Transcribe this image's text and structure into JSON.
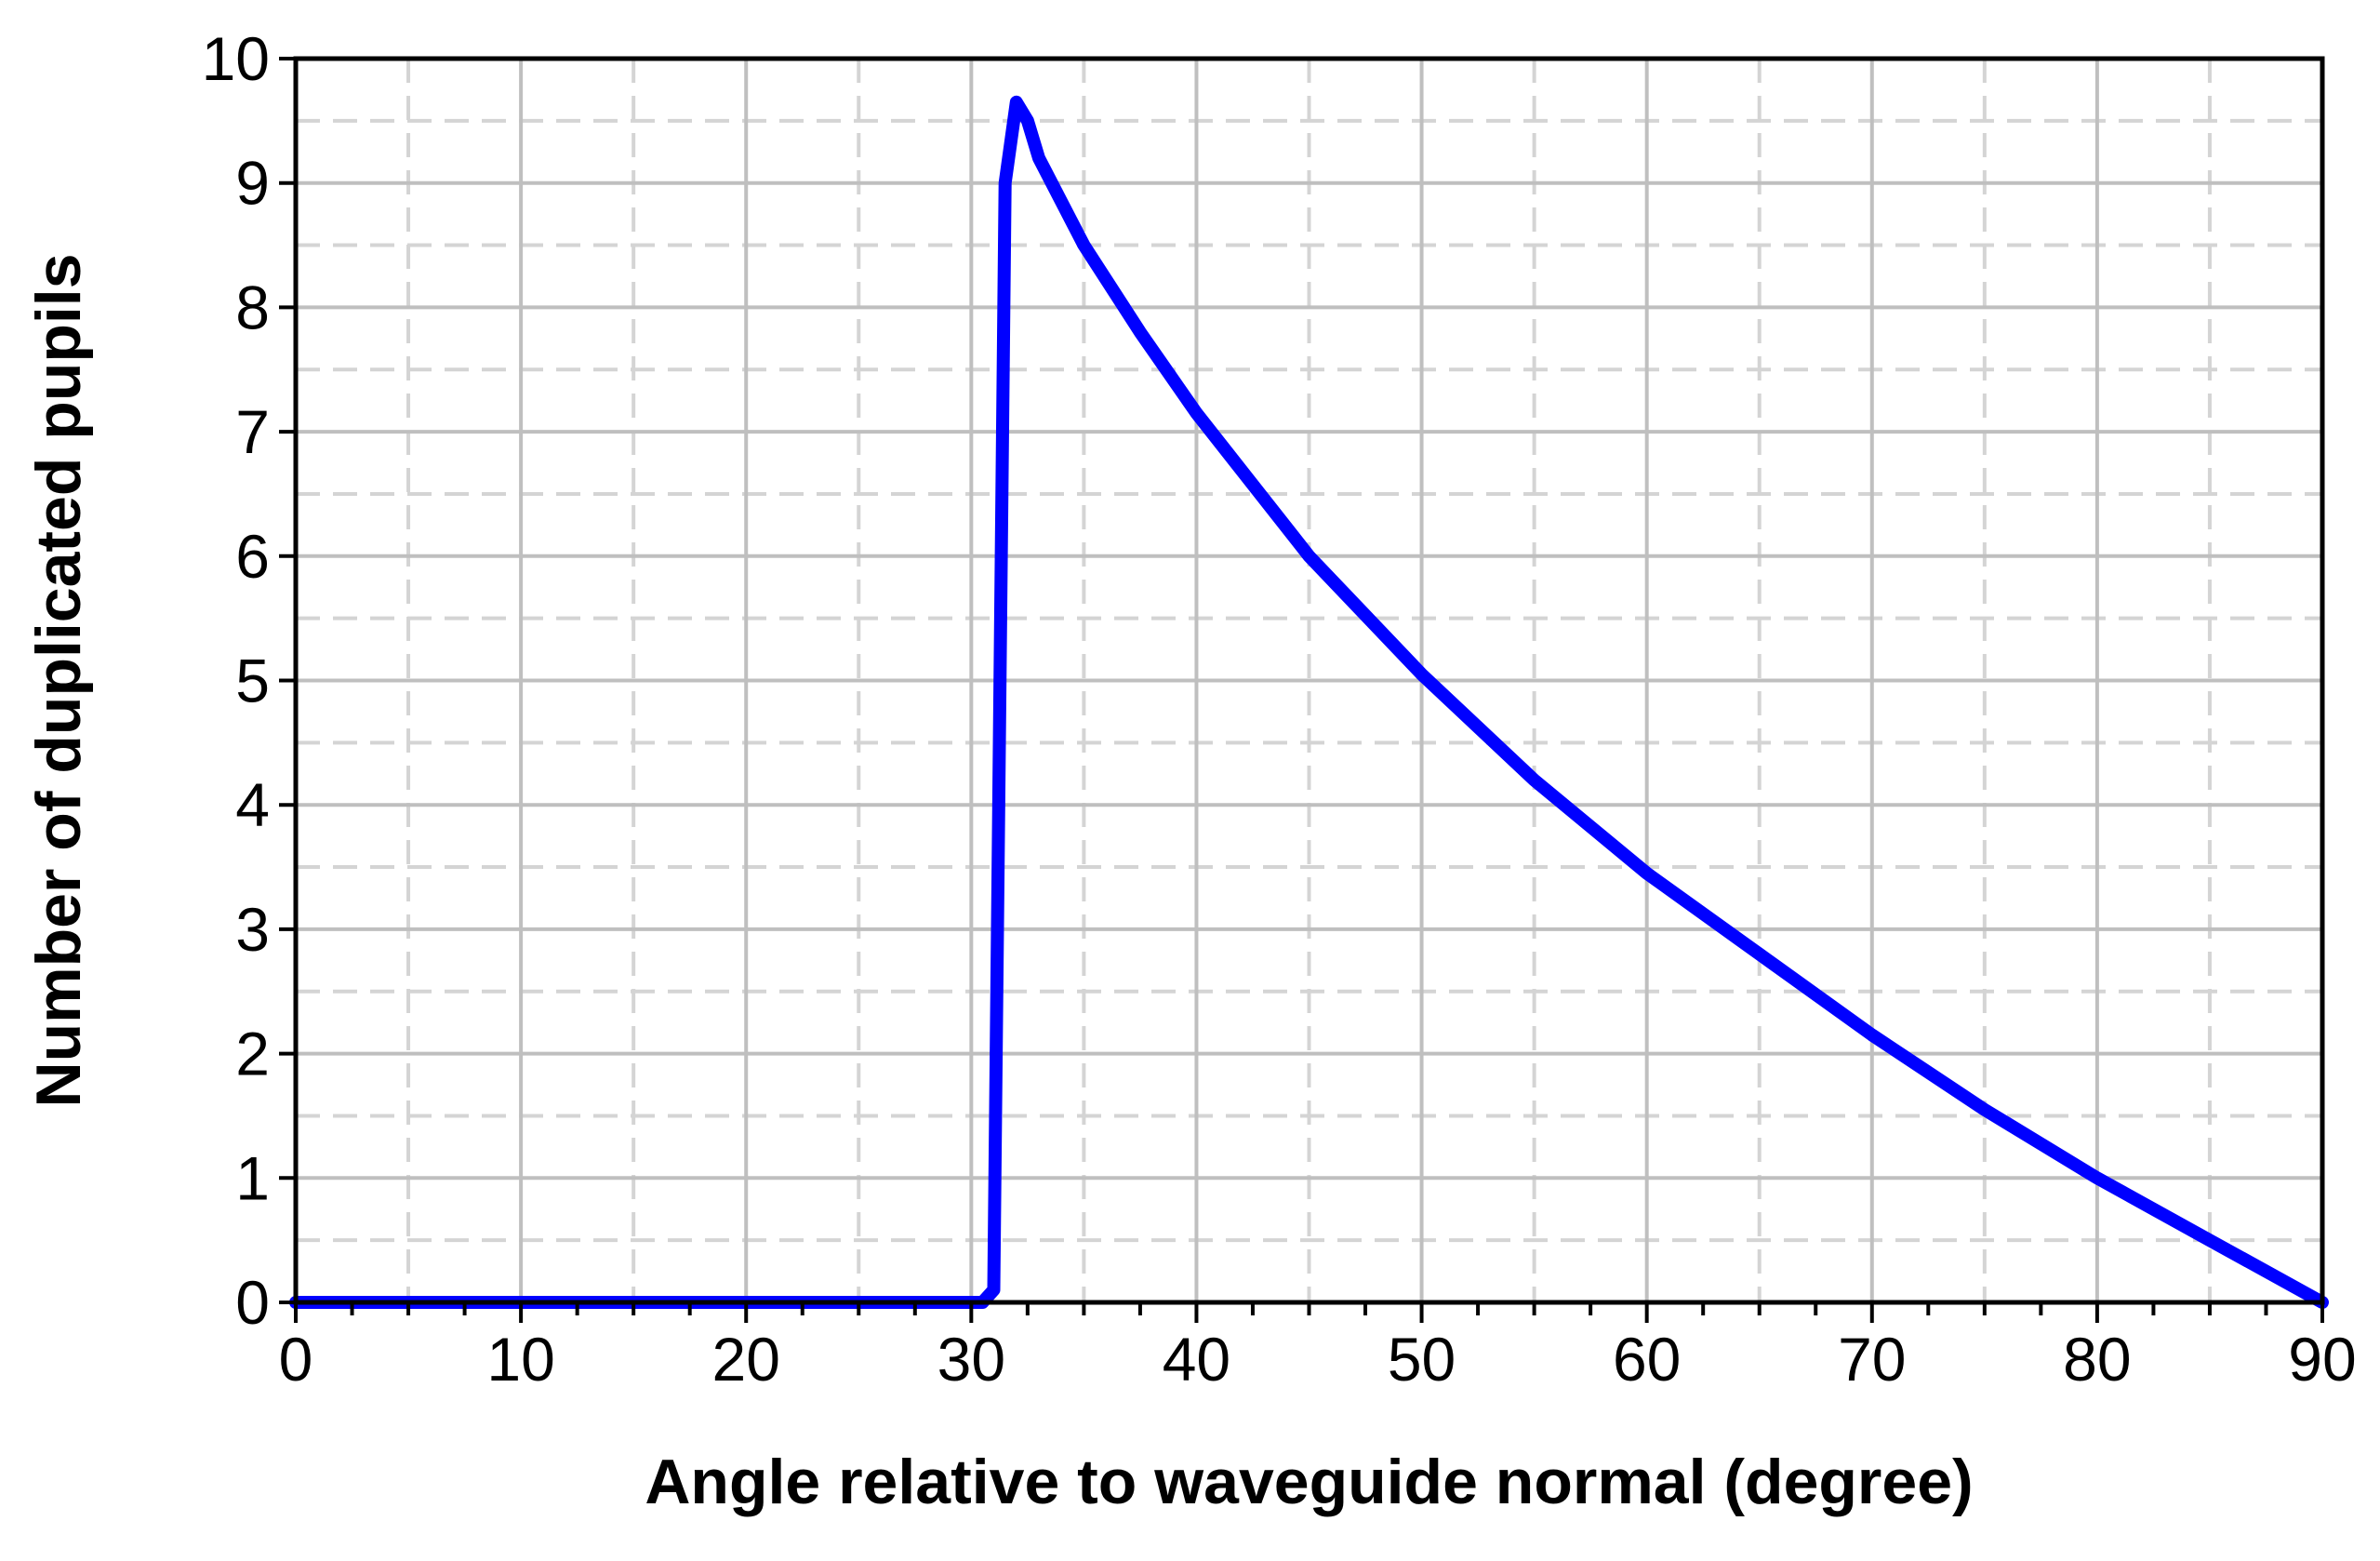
{
  "chart_data": {
    "type": "line",
    "title": "",
    "xlabel": "Angle relative to waveguide normal (degree)",
    "ylabel": "Number of duplicated pupils",
    "xlim": [
      0,
      90
    ],
    "ylim": [
      0,
      10
    ],
    "x_ticks": [
      0,
      10,
      20,
      30,
      40,
      50,
      60,
      70,
      80,
      90
    ],
    "y_ticks": [
      0,
      1,
      2,
      3,
      4,
      5,
      6,
      7,
      8,
      9,
      10
    ],
    "x_tick_labels": [
      "0",
      "10",
      "20",
      "30",
      "40",
      "50",
      "60",
      "70",
      "80",
      "90"
    ],
    "y_tick_labels": [
      "0",
      "1",
      "2",
      "3",
      "4",
      "5",
      "6",
      "7",
      "8",
      "9",
      "10"
    ],
    "grid": true,
    "minor_grid": true,
    "legend": "none",
    "series": [
      {
        "color": "#0000ff",
        "x": [
          0,
          30,
          30.5,
          31,
          31.5,
          32.0,
          32.5,
          33,
          35,
          37.5,
          40,
          45,
          50,
          55,
          60,
          65,
          70,
          75,
          80,
          85,
          90
        ],
        "y": [
          0,
          0,
          0,
          0.1,
          9.0,
          9.65,
          9.5,
          9.2,
          8.5,
          7.8,
          7.15,
          6.0,
          5.05,
          4.2,
          3.45,
          2.8,
          2.15,
          1.55,
          1.0,
          0.5,
          0
        ]
      }
    ]
  }
}
